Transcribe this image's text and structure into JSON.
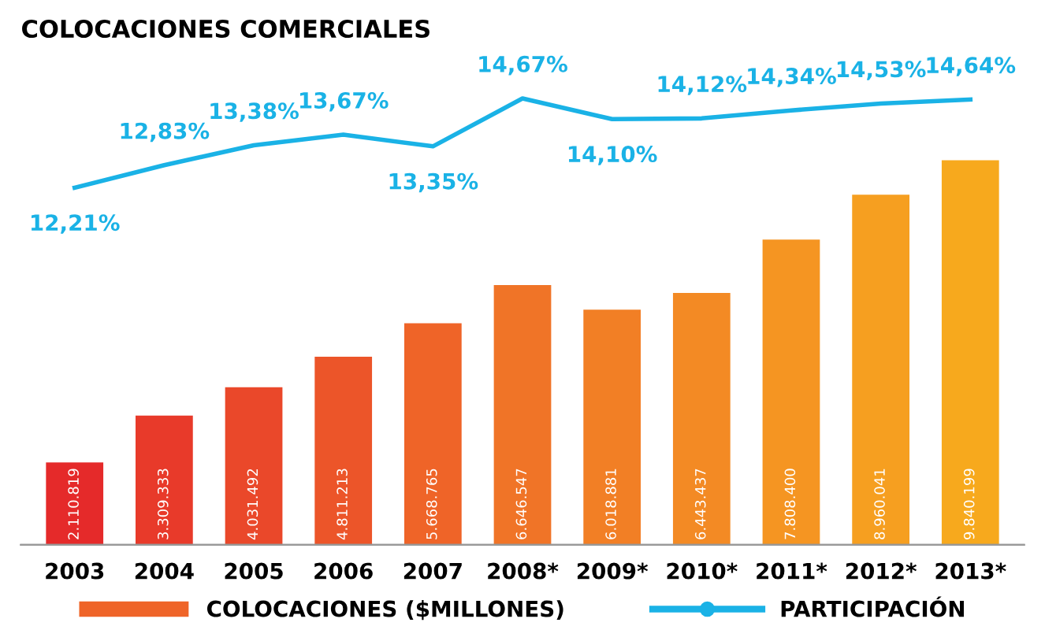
{
  "chart_data": {
    "type": "bar",
    "title": "COLOCACIONES COMERCIALES",
    "categories": [
      "2003",
      "2004",
      "2005",
      "2006",
      "2007",
      "2008*",
      "2009*",
      "2010*",
      "2011*",
      "2012*",
      "2013*"
    ],
    "series": [
      {
        "name": "COLOCACIONES ($MILLONES)",
        "colors": [
          "#e52a2a",
          "#e83a2a",
          "#ea482a",
          "#ec5529",
          "#ef6428",
          "#f07427",
          "#f27f25",
          "#f38a24",
          "#f59522",
          "#f69f20",
          "#f7a91d"
        ],
        "color": "#ef6428",
        "values": [
          2110819,
          3309333,
          4031492,
          4811213,
          5668765,
          6646547,
          6018881,
          6443437,
          7808400,
          8960041,
          9840199
        ],
        "value_labels": [
          "2.110.819",
          "3.309.333",
          "4.031.492",
          "4.811.213",
          "5.668.765",
          "6.646.547",
          "6.018.881",
          "6.443.437",
          "7.808.400",
          "8.960.041",
          "9.840.199"
        ]
      },
      {
        "name": "PARTICIPACIÓN",
        "type": "line",
        "axis": "y2",
        "color": "#1ab2e6",
        "values": [
          12.21,
          12.83,
          13.38,
          13.67,
          13.35,
          14.67,
          14.1,
          14.12,
          14.34,
          14.53,
          14.64
        ],
        "value_labels": [
          "12,21%",
          "12,83%",
          "13,38%",
          "13,67%",
          "13,35%",
          "14,67%",
          "14,10%",
          "14,12%",
          "14,34%",
          "14,53%",
          "14,64%"
        ]
      }
    ],
    "legend": "bottom",
    "grid": false
  }
}
